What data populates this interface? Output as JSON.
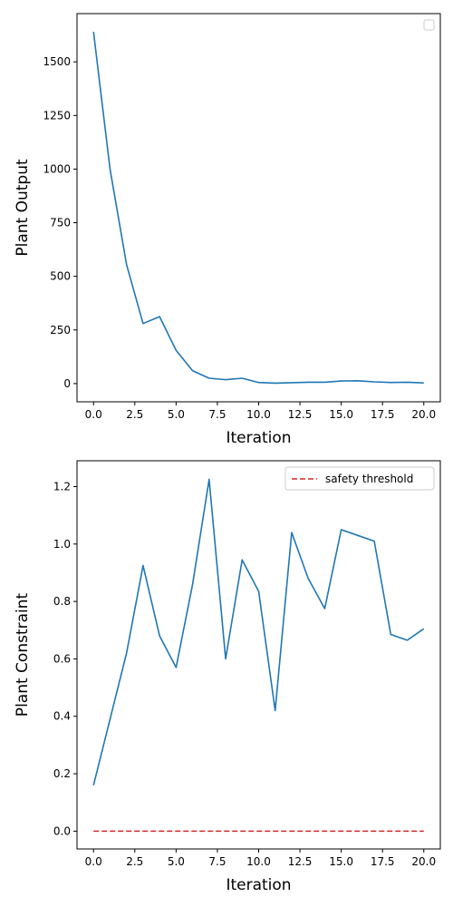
{
  "chart_data": [
    {
      "type": "line",
      "xlabel": "Iteration",
      "ylabel": "Plant Output",
      "xlim": [
        -1,
        21
      ],
      "ylim": [
        -85,
        1725
      ],
      "xticks": [
        0,
        2.5,
        5,
        7.5,
        10,
        12.5,
        15,
        17.5,
        20
      ],
      "xtick_labels": [
        "0.0",
        "2.5",
        "5.0",
        "7.5",
        "10.0",
        "12.5",
        "15.0",
        "17.5",
        "20.0"
      ],
      "yticks": [
        0,
        250,
        500,
        750,
        1000,
        1250,
        1500
      ],
      "ytick_labels": [
        "0",
        "250",
        "500",
        "750",
        "1000",
        "1250",
        "1500"
      ],
      "grid": false,
      "legend": "top-right (empty)",
      "series": [
        {
          "color": "#1f77b4",
          "style": "solid",
          "x": [
            0,
            1,
            2,
            3,
            4,
            5,
            6,
            7,
            8,
            9,
            10,
            11,
            12,
            13,
            14,
            15,
            16,
            17,
            18,
            19,
            20
          ],
          "values": [
            1640,
            1000,
            555,
            280,
            312,
            155,
            60,
            25,
            18,
            25,
            5,
            2,
            4,
            6,
            6,
            12,
            13,
            8,
            5,
            6,
            3
          ]
        }
      ]
    },
    {
      "type": "line",
      "xlabel": "Iteration",
      "ylabel": "Plant Constraint",
      "xlim": [
        -1,
        21
      ],
      "ylim": [
        -0.062,
        1.29
      ],
      "xticks": [
        0,
        2.5,
        5,
        7.5,
        10,
        12.5,
        15,
        17.5,
        20
      ],
      "xtick_labels": [
        "0.0",
        "2.5",
        "5.0",
        "7.5",
        "10.0",
        "12.5",
        "15.0",
        "17.5",
        "20.0"
      ],
      "yticks": [
        0,
        0.2,
        0.4,
        0.6,
        0.8,
        1.0,
        1.2
      ],
      "ytick_labels": [
        "0.0",
        "0.2",
        "0.4",
        "0.6",
        "0.8",
        "1.0",
        "1.2"
      ],
      "grid": false,
      "legend": "top-right",
      "series": [
        {
          "color": "#1f77b4",
          "style": "solid",
          "x": [
            0,
            1,
            2,
            3,
            4,
            5,
            6,
            7,
            8,
            9,
            10,
            11,
            12,
            13,
            14,
            15,
            16,
            17,
            18,
            19,
            20
          ],
          "values": [
            0.16,
            0.39,
            0.62,
            0.925,
            0.68,
            0.57,
            0.86,
            1.225,
            0.6,
            0.945,
            0.835,
            0.42,
            1.04,
            0.88,
            0.775,
            1.05,
            1.03,
            1.01,
            0.685,
            0.665,
            0.705
          ]
        },
        {
          "name": "safety threshold",
          "color": "#d62728",
          "style": "dashed",
          "x": [
            0,
            20
          ],
          "values": [
            0,
            0
          ]
        }
      ]
    }
  ]
}
